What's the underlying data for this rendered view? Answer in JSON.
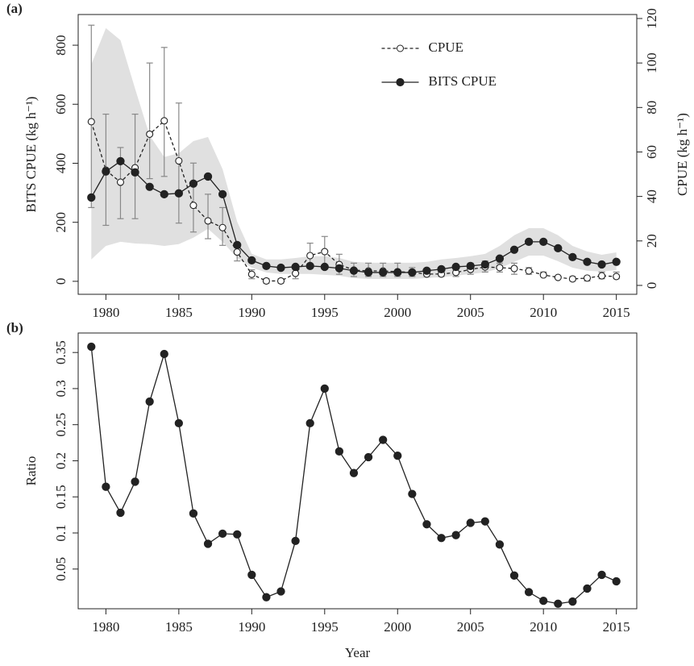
{
  "chart_data": [
    {
      "type": "line",
      "panel_label": "(a)",
      "x": [
        1979,
        1980,
        1981,
        1982,
        1983,
        1984,
        1985,
        1986,
        1987,
        1988,
        1989,
        1990,
        1991,
        1992,
        1993,
        1994,
        1995,
        1996,
        1997,
        1998,
        1999,
        2000,
        2001,
        2002,
        2003,
        2004,
        2005,
        2006,
        2007,
        2008,
        2009,
        2010,
        2011,
        2012,
        2013,
        2014,
        2015
      ],
      "xlim": [
        1978.1,
        2016.4
      ],
      "xticks": [
        1980,
        1985,
        1990,
        1995,
        2000,
        2005,
        2010,
        2015
      ],
      "ylabel": "BITS CPUE (kg h⁻¹)",
      "ylim": [
        -44,
        904
      ],
      "yticks": [
        0,
        200,
        400,
        600,
        800
      ],
      "y2label": "CPUE (kg h⁻¹)",
      "y2lim": [
        -4,
        121.8
      ],
      "y2ticks": [
        0,
        20,
        40,
        60,
        80,
        100,
        120
      ],
      "legend": "top",
      "series": [
        {
          "name": "CPUE",
          "color": "#222222",
          "axis": "y2",
          "line_style": "dashed",
          "marker": "open",
          "error_color": "#888888",
          "values": [
            73.6,
            51.8,
            46.4,
            52.9,
            68,
            74,
            56,
            36,
            29,
            26,
            15,
            5,
            2,
            2,
            5.4,
            13.4,
            15.2,
            9.4,
            6.9,
            6.5,
            6.5,
            6.2,
            5.8,
            5.1,
            5.1,
            5.8,
            7.2,
            8.3,
            8,
            7.6,
            6.5,
            4.7,
            3.6,
            2.9,
            3.3,
            4.3,
            4
          ],
          "lower": [
            35,
            27,
            30,
            30,
            48,
            49,
            28,
            24,
            21,
            18,
            11,
            3,
            1,
            1,
            3,
            8,
            9,
            5,
            4,
            4,
            4,
            4,
            4,
            4,
            4,
            4,
            5,
            6,
            6,
            5,
            5,
            4,
            3,
            2,
            2,
            3,
            3
          ],
          "upper": [
            117,
            77,
            62,
            77,
            100,
            107,
            82,
            55,
            41,
            35,
            19,
            7,
            3,
            3,
            8,
            19,
            22,
            14,
            10,
            10,
            10,
            10,
            8,
            7,
            7,
            8,
            10,
            11,
            10,
            10,
            8,
            6,
            4,
            4,
            4,
            6,
            6
          ]
        },
        {
          "name": "BITS CPUE",
          "color": "#222222",
          "axis": "y",
          "line_style": "solid",
          "marker": "filled",
          "band_color": "#e0e0e0",
          "values": [
            284,
            372,
            407,
            369,
            320,
            295,
            298,
            331,
            355,
            295,
            123,
            71,
            52,
            46,
            49,
            52,
            49,
            44,
            36,
            30,
            30,
            30,
            30,
            36,
            41,
            49,
            52,
            57,
            77,
            107,
            134,
            134,
            112,
            82,
            66,
            57,
            66
          ],
          "band_low": [
            74,
            120,
            134,
            128,
            126,
            120,
            126,
            148,
            178,
            134,
            79,
            46,
            30,
            25,
            25,
            25,
            22,
            19,
            11,
            8,
            8,
            8,
            8,
            11,
            14,
            19,
            25,
            30,
            44,
            66,
            87,
            87,
            68,
            46,
            36,
            33,
            38
          ],
          "band_high": [
            735,
            858,
            817,
            653,
            494,
            421,
            434,
            475,
            489,
            380,
            202,
            93,
            74,
            74,
            79,
            85,
            85,
            79,
            66,
            63,
            63,
            63,
            63,
            66,
            74,
            79,
            85,
            93,
            120,
            156,
            180,
            180,
            156,
            120,
            101,
            90,
            98
          ]
        }
      ]
    },
    {
      "type": "line",
      "panel_label": "(b)",
      "x": [
        1979,
        1980,
        1981,
        1982,
        1983,
        1984,
        1985,
        1986,
        1987,
        1988,
        1989,
        1990,
        1991,
        1992,
        1993,
        1994,
        1995,
        1996,
        1997,
        1998,
        1999,
        2000,
        2001,
        2002,
        2003,
        2004,
        2005,
        2006,
        2007,
        2008,
        2009,
        2010,
        2011,
        2012,
        2013,
        2014,
        2015
      ],
      "xlim": [
        1978.1,
        2016.4
      ],
      "xticks": [
        1980,
        1985,
        1990,
        1995,
        2000,
        2005,
        2010,
        2015
      ],
      "xlabel": "Year",
      "ylabel": "Ratio",
      "ylim": [
        -0.005,
        0.377
      ],
      "yticks": [
        0.05,
        0.1,
        0.15,
        0.2,
        0.25,
        0.3,
        0.35
      ],
      "color": "#222222",
      "marker": "filled",
      "line_style": "solid",
      "values": [
        0.358,
        0.164,
        0.128,
        0.171,
        0.282,
        0.348,
        0.252,
        0.127,
        0.085,
        0.099,
        0.098,
        0.042,
        0.011,
        0.019,
        0.089,
        0.252,
        0.3,
        0.213,
        0.183,
        0.205,
        0.229,
        0.207,
        0.154,
        0.112,
        0.093,
        0.097,
        0.114,
        0.116,
        0.084,
        0.041,
        0.018,
        0.006,
        0.002,
        0.005,
        0.023,
        0.042,
        0.033
      ]
    }
  ]
}
